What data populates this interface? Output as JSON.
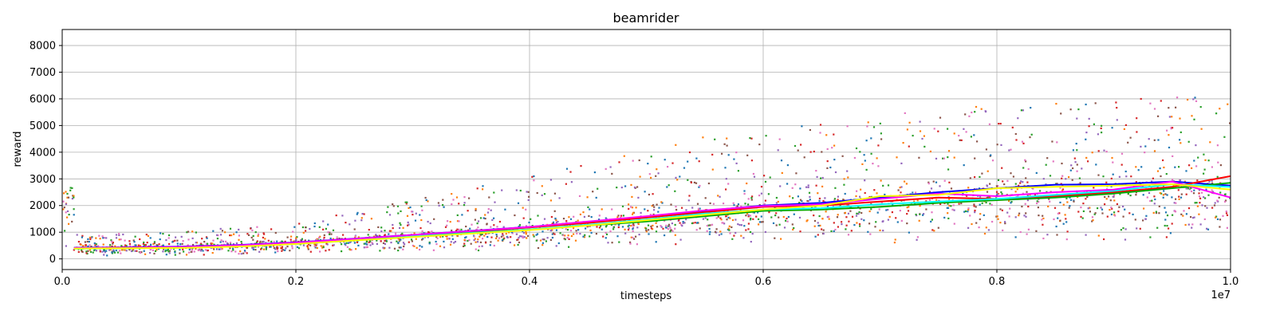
{
  "chart_data": {
    "type": "scatter",
    "title": "beamrider",
    "xlabel": "timesteps",
    "ylabel": "reward",
    "x_offset_label": "1e7",
    "xlim": [
      0,
      1.0
    ],
    "ylim": [
      -400,
      8600
    ],
    "xticks": [
      0.0,
      0.2,
      0.4,
      0.6,
      0.8,
      1.0
    ],
    "xtick_labels": [
      "0.0",
      "0.2",
      "0.4",
      "0.6",
      "0.8",
      "1.0"
    ],
    "yticks": [
      0,
      1000,
      2000,
      3000,
      4000,
      5000,
      6000,
      7000,
      8000
    ],
    "ytick_labels": [
      "0",
      "1000",
      "2000",
      "3000",
      "4000",
      "5000",
      "6000",
      "7000",
      "8000"
    ],
    "grid": true,
    "scatter_colors": [
      "#1f77b4",
      "#ff7f0e",
      "#2ca02c",
      "#d62728",
      "#9467bd",
      "#8c564b",
      "#e377c2"
    ],
    "series": [
      {
        "color": "#0000ff",
        "x": [
          0.01,
          0.05,
          0.1,
          0.15,
          0.2,
          0.25,
          0.3,
          0.35,
          0.4,
          0.45,
          0.5,
          0.55,
          0.6,
          0.65,
          0.7,
          0.75,
          0.8,
          0.85,
          0.9,
          0.95,
          1.0
        ],
        "y": [
          420,
          430,
          460,
          520,
          620,
          760,
          900,
          1050,
          1200,
          1380,
          1580,
          1800,
          2000,
          2100,
          2300,
          2500,
          2650,
          2780,
          2800,
          2900,
          2750
        ]
      },
      {
        "color": "#ff0000",
        "x": [
          0.01,
          0.05,
          0.1,
          0.15,
          0.2,
          0.25,
          0.3,
          0.35,
          0.4,
          0.45,
          0.5,
          0.55,
          0.6,
          0.65,
          0.7,
          0.75,
          0.8,
          0.85,
          0.9,
          0.95,
          1.0
        ],
        "y": [
          400,
          420,
          440,
          500,
          600,
          730,
          880,
          1020,
          1180,
          1350,
          1550,
          1750,
          1950,
          2000,
          2150,
          2300,
          2250,
          2350,
          2500,
          2700,
          3100
        ]
      },
      {
        "color": "#00aa00",
        "x": [
          0.01,
          0.05,
          0.1,
          0.15,
          0.2,
          0.25,
          0.3,
          0.35,
          0.4,
          0.45,
          0.5,
          0.55,
          0.6,
          0.65,
          0.7,
          0.75,
          0.8,
          0.85,
          0.9,
          0.95,
          1.0
        ],
        "y": [
          400,
          410,
          430,
          480,
          570,
          700,
          850,
          980,
          1100,
          1250,
          1400,
          1600,
          1800,
          1850,
          1950,
          2100,
          2200,
          2300,
          2450,
          2650,
          2850
        ]
      },
      {
        "color": "#00ffff",
        "x": [
          0.01,
          0.05,
          0.1,
          0.15,
          0.2,
          0.25,
          0.3,
          0.35,
          0.4,
          0.45,
          0.5,
          0.55,
          0.6,
          0.65,
          0.7,
          0.75,
          0.8,
          0.85,
          0.9,
          0.95,
          1.0
        ],
        "y": [
          380,
          400,
          420,
          470,
          560,
          690,
          840,
          970,
          1100,
          1280,
          1480,
          1700,
          1850,
          1900,
          2050,
          2150,
          2250,
          2400,
          2550,
          2800,
          2700
        ]
      },
      {
        "color": "#ff00ff",
        "x": [
          0.01,
          0.05,
          0.1,
          0.15,
          0.2,
          0.25,
          0.3,
          0.35,
          0.4,
          0.45,
          0.5,
          0.55,
          0.6,
          0.65,
          0.7,
          0.75,
          0.8,
          0.85,
          0.9,
          0.95,
          1.0
        ],
        "y": [
          410,
          420,
          450,
          510,
          610,
          750,
          900,
          1040,
          1200,
          1400,
          1600,
          1820,
          1980,
          2050,
          2250,
          2450,
          2350,
          2500,
          2600,
          2900,
          2300
        ]
      },
      {
        "color": "#ffff00",
        "x": [
          0.01,
          0.05,
          0.1,
          0.15,
          0.2,
          0.25,
          0.3,
          0.35,
          0.4,
          0.45,
          0.5,
          0.55,
          0.6,
          0.65,
          0.7,
          0.75,
          0.8,
          0.85,
          0.9,
          0.95,
          1.0
        ],
        "y": [
          390,
          400,
          410,
          460,
          560,
          690,
          820,
          950,
          1080,
          1250,
          1450,
          1650,
          1850,
          2000,
          2350,
          2400,
          2650,
          2700,
          2750,
          2800,
          2600
        ]
      }
    ],
    "scatter_bands": [
      {
        "x": [
          0.0,
          0.1,
          0.2,
          0.3,
          0.4,
          0.5,
          0.6,
          0.7,
          0.8,
          0.9,
          1.0
        ],
        "low": [
          200,
          200,
          250,
          300,
          350,
          450,
          600,
          650,
          650,
          650,
          650
        ],
        "high": [
          900,
          1000,
          1400,
          2200,
          3200,
          4200,
          5000,
          5500,
          5800,
          6000,
          6200
        ]
      }
    ]
  }
}
